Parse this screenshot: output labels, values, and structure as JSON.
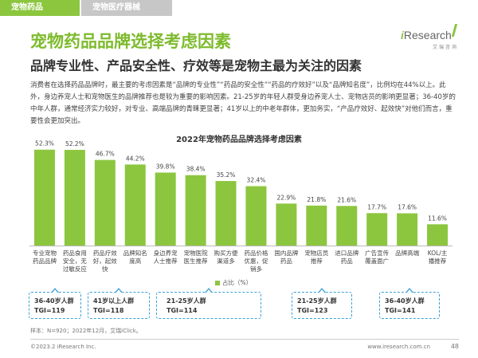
{
  "tabs": {
    "active": "宠物药品",
    "inactive": "宠物医疗器械"
  },
  "logo": {
    "brand_i": "i",
    "brand_rest": "Research",
    "sub": "艾瑞咨询"
  },
  "title": "宠物药品品牌选择考虑因素",
  "subtitle": "品牌专业性、产品安全性、疗效等是宠物主最为关注的因素",
  "description": "消费者在选择药品品牌时，最主要的考虑因素是“品牌的专业性”“药品的安全性”“药品的疗效好”以及“品牌知名度”，比例均在44%以上。此外，身边养宠人士和宠物医生的品牌推荐也是较为重要的影响因素。21-25岁的年轻人群受身边养宠人士、宠物店员的影响更显著；36-40岁的中年人群，通常经济实力较好，对专业、高端品牌的青睐更显著；41岁以上的中老年群体，更加务实，“产品疗效好、起效快”对他们而言，重要性会更加突出。",
  "chart_data": {
    "type": "bar",
    "title": "2022年宠物药品品牌选择考虑因素",
    "categories": [
      [
        "专业宠物",
        "药品品牌"
      ],
      [
        "药品食用",
        "安全，无",
        "过敏反应"
      ],
      [
        "药品疗效",
        "好，起效",
        "快"
      ],
      [
        "品牌知名",
        "度高"
      ],
      [
        "身边养宠",
        "人士推荐"
      ],
      [
        "宠物医院",
        "医生推荐"
      ],
      [
        "购买方便",
        "渠道多"
      ],
      [
        "药品价格",
        "优惠，促",
        "销多"
      ],
      [
        "国内品牌",
        "药品"
      ],
      [
        "宠物店员",
        "推荐"
      ],
      [
        "进口品牌",
        "药品"
      ],
      [
        "广告宣传",
        "覆盖面广"
      ],
      [
        "品牌高端"
      ],
      [
        "KOL/主",
        "播推荐"
      ]
    ],
    "values": [
      52.3,
      52.2,
      46.7,
      44.2,
      39.8,
      38.4,
      35.2,
      32.4,
      22.9,
      21.8,
      21.6,
      17.7,
      17.6,
      11.6
    ],
    "value_labels": [
      "52.3%",
      "52.2%",
      "46.7%",
      "44.2%",
      "39.8%",
      "38.4%",
      "35.2%",
      "32.4%",
      "22.9%",
      "21.8%",
      "21.6%",
      "17.7%",
      "17.6%",
      "11.6%"
    ],
    "legend": "占比（%）",
    "ylim": [
      0,
      60
    ],
    "bar_color": "#8cc63f"
  },
  "callouts": [
    {
      "group": "36-40岁人群",
      "tgi": "TGI=119"
    },
    {
      "group": "41岁以上人群",
      "tgi": "TGI=118"
    },
    {
      "group": "21-25岁人群",
      "tgi": "TGI=114"
    },
    {
      "group": "21-25岁人群",
      "tgi": "TGI=123"
    },
    {
      "group": "36-40岁人群",
      "tgi": "TGI=141"
    }
  ],
  "footnote": "样本：N=920；2022年12月，艾瑞iClick。",
  "footer": {
    "copyright": "©2023.2 iResearch Inc.",
    "url": "www.iresearch.com.cn",
    "page": "48"
  }
}
